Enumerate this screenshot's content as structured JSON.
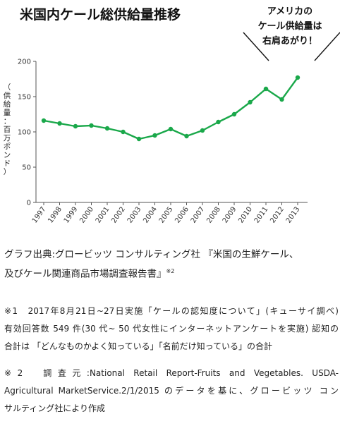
{
  "title": "米国内ケール総供給量推移",
  "callout": {
    "lines": [
      "アメリカの",
      "ケール供給量は",
      "右肩あがり！"
    ]
  },
  "y_axis_label": [
    "（",
    "供",
    "給",
    "量",
    "：",
    "百",
    "万",
    "ポ",
    "ン",
    "ド",
    "）"
  ],
  "colors": {
    "line": "#1aa84a",
    "axis": "#555555",
    "text": "#222222"
  },
  "chart_data": {
    "type": "line",
    "title": "米国内ケール総供給量推移",
    "ylabel": "供給量：百万ポンド",
    "xlabel": "",
    "x": [
      "1997",
      "1998",
      "1999",
      "2000",
      "2001",
      "2002",
      "2003",
      "2004",
      "2005",
      "2006",
      "2007",
      "2008",
      "2009",
      "2010",
      "2011",
      "2012",
      "2013"
    ],
    "series": [
      {
        "values": [
          116,
          112,
          108,
          109,
          105,
          100,
          90,
          95,
          104,
          94,
          102,
          114,
          125,
          142,
          161,
          146,
          177
        ]
      }
    ],
    "ylim": [
      0,
      200
    ],
    "yticks": [
      0,
      50,
      100,
      150,
      200
    ],
    "grid": false,
    "legend": "none"
  },
  "source": {
    "line1": "グラフ出典:グロービッツ コンサルティング社 『米国の生鮮ケール、",
    "line2": "及びケール関連商品市場調査報告書』",
    "sup": "※2"
  },
  "note1": {
    "line1": "※1　2017年8月21日~27日実施「ケールの認知度について」(キューサイ調べ)",
    "line2": "有効回答数 549 件(30 代~ 50 代女性にインターネットアンケートを実施) 認知の",
    "line3": "合計は 「どんなものかよく知っている」「名前だけ知っている」の合計"
  },
  "note2": {
    "line1": "※2　調査元:National Retail Report-Fruits and Vegetables. USDA-",
    "line2": "Agricultural MarketService.2/1/2015 のデータを基に、グロービッツ コン",
    "line3": "サルティング社により作成"
  }
}
